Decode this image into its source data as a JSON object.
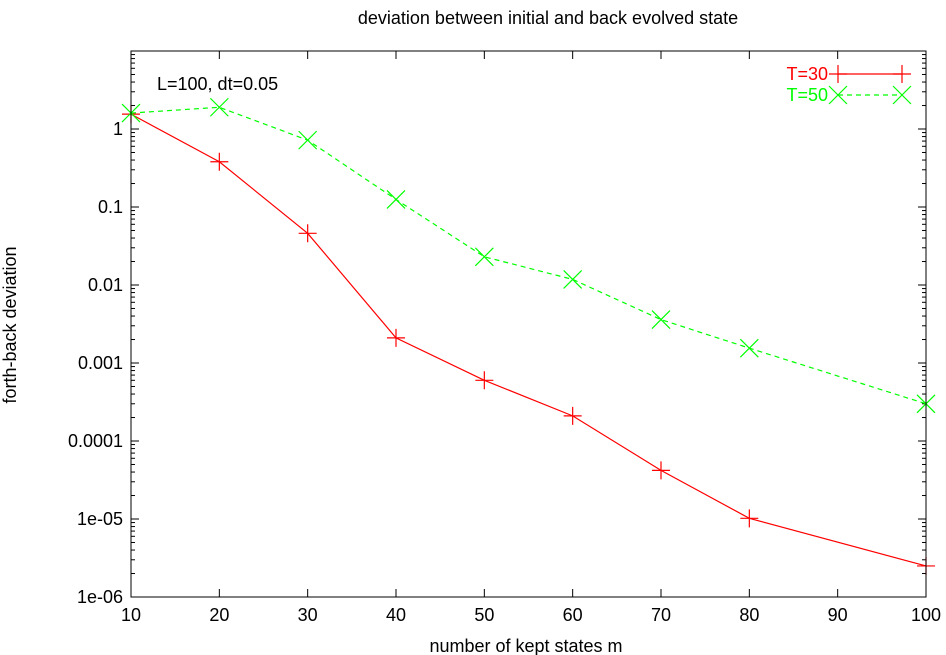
{
  "chart_data": {
    "type": "line",
    "title": "deviation between initial and back evolved state",
    "xlabel": "number of kept states m",
    "ylabel": "forth-back deviation",
    "annotation": "L=100, dt=0.05",
    "xlim": [
      10,
      100
    ],
    "ylim": [
      1e-06,
      10
    ],
    "yscale": "log",
    "x_ticks": [
      10,
      20,
      30,
      40,
      50,
      60,
      70,
      80,
      90,
      100
    ],
    "x_tick_labels": [
      "10",
      "20",
      "30",
      "40",
      "50",
      "60",
      "70",
      "80",
      "90",
      "100"
    ],
    "y_ticks": [
      1e-06,
      1e-05,
      0.0001,
      0.001,
      0.01,
      0.1,
      1
    ],
    "y_tick_labels": [
      "1e-06",
      "1e-05",
      "0.0001",
      "0.001",
      "0.01",
      "0.1",
      "1"
    ],
    "legend_position": "top-right",
    "grid": false,
    "series": [
      {
        "name": "T=30",
        "color": "#ff0000",
        "marker": "plus",
        "line_style": "solid",
        "x": [
          10,
          20,
          30,
          40,
          50,
          60,
          70,
          80,
          100
        ],
        "y": [
          1.55,
          0.38,
          0.046,
          0.0021,
          0.0006,
          0.00021,
          4.2e-05,
          1.02e-05,
          2.5e-06
        ]
      },
      {
        "name": "T=50",
        "color": "#00ff00",
        "marker": "cross",
        "line_style": "dashed",
        "x": [
          10,
          20,
          30,
          40,
          50,
          60,
          70,
          80,
          100
        ],
        "y": [
          1.6,
          1.9,
          0.72,
          0.125,
          0.023,
          0.0118,
          0.0036,
          0.00155,
          0.0003
        ]
      }
    ]
  }
}
